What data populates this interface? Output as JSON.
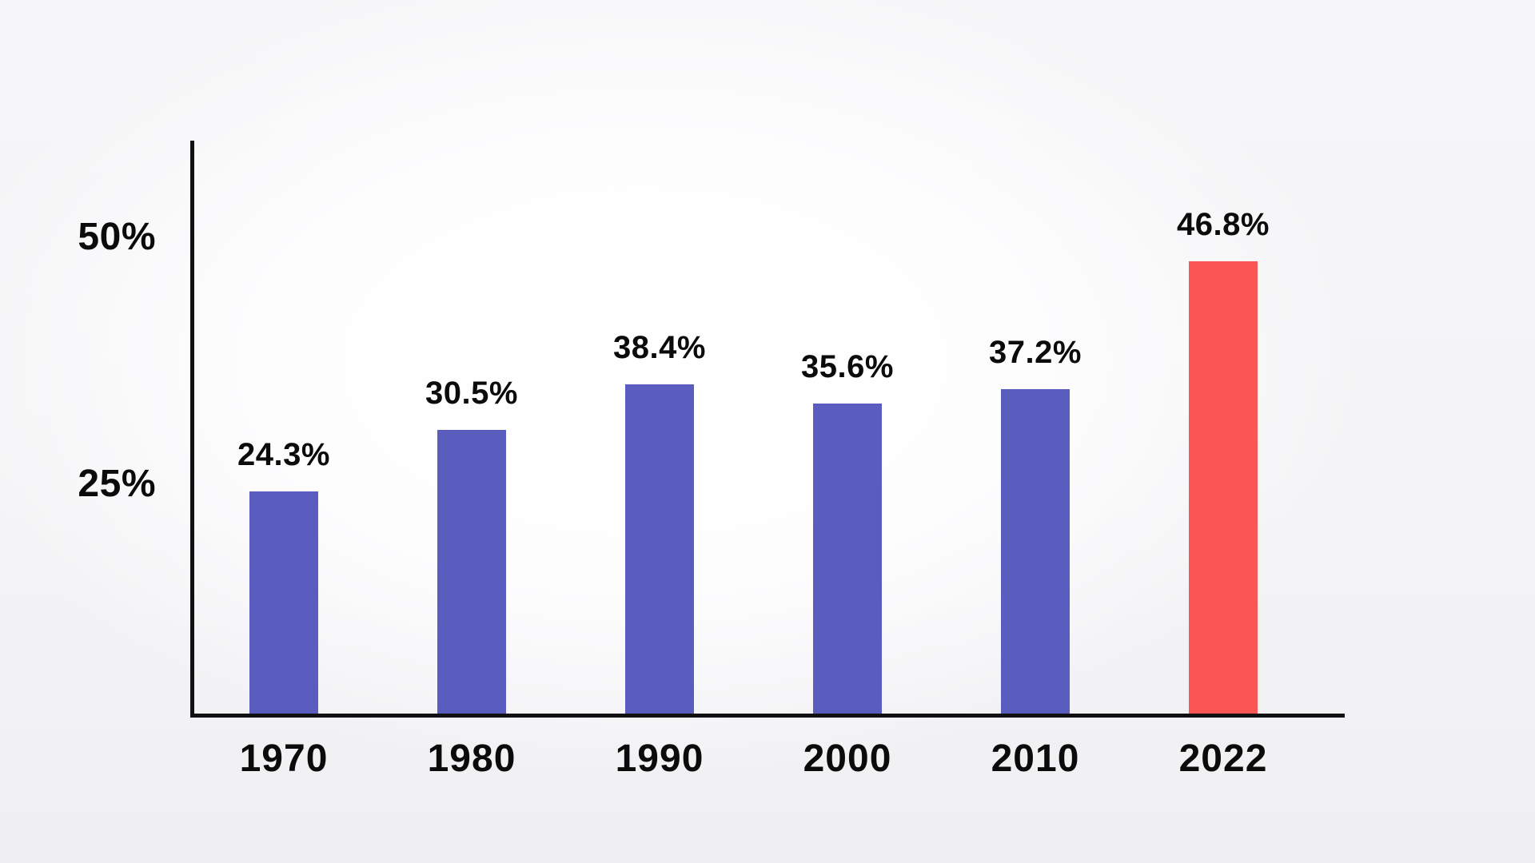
{
  "chart_data": {
    "type": "bar",
    "title": "",
    "xlabel": "",
    "ylabel": "",
    "categories": [
      "1970",
      "1980",
      "1990",
      "2000",
      "2010",
      "2022"
    ],
    "values": [
      24.3,
      30.5,
      38.4,
      35.6,
      37.2,
      46.8
    ],
    "value_labels": [
      "24.3%",
      "30.5%",
      "38.4%",
      "35.6%",
      "37.2%",
      "46.8%"
    ],
    "y_ticks": [
      {
        "label": "50%",
        "value": 50
      },
      {
        "label": "25%",
        "value": 25
      }
    ],
    "ylim": [
      0,
      55
    ],
    "grid": false,
    "legend": false,
    "highlight_index": 5,
    "colors": {
      "bar": "#5A5CBE",
      "highlight": "#FB5656",
      "axis": "#111111",
      "text": "#0B0B0B"
    }
  }
}
